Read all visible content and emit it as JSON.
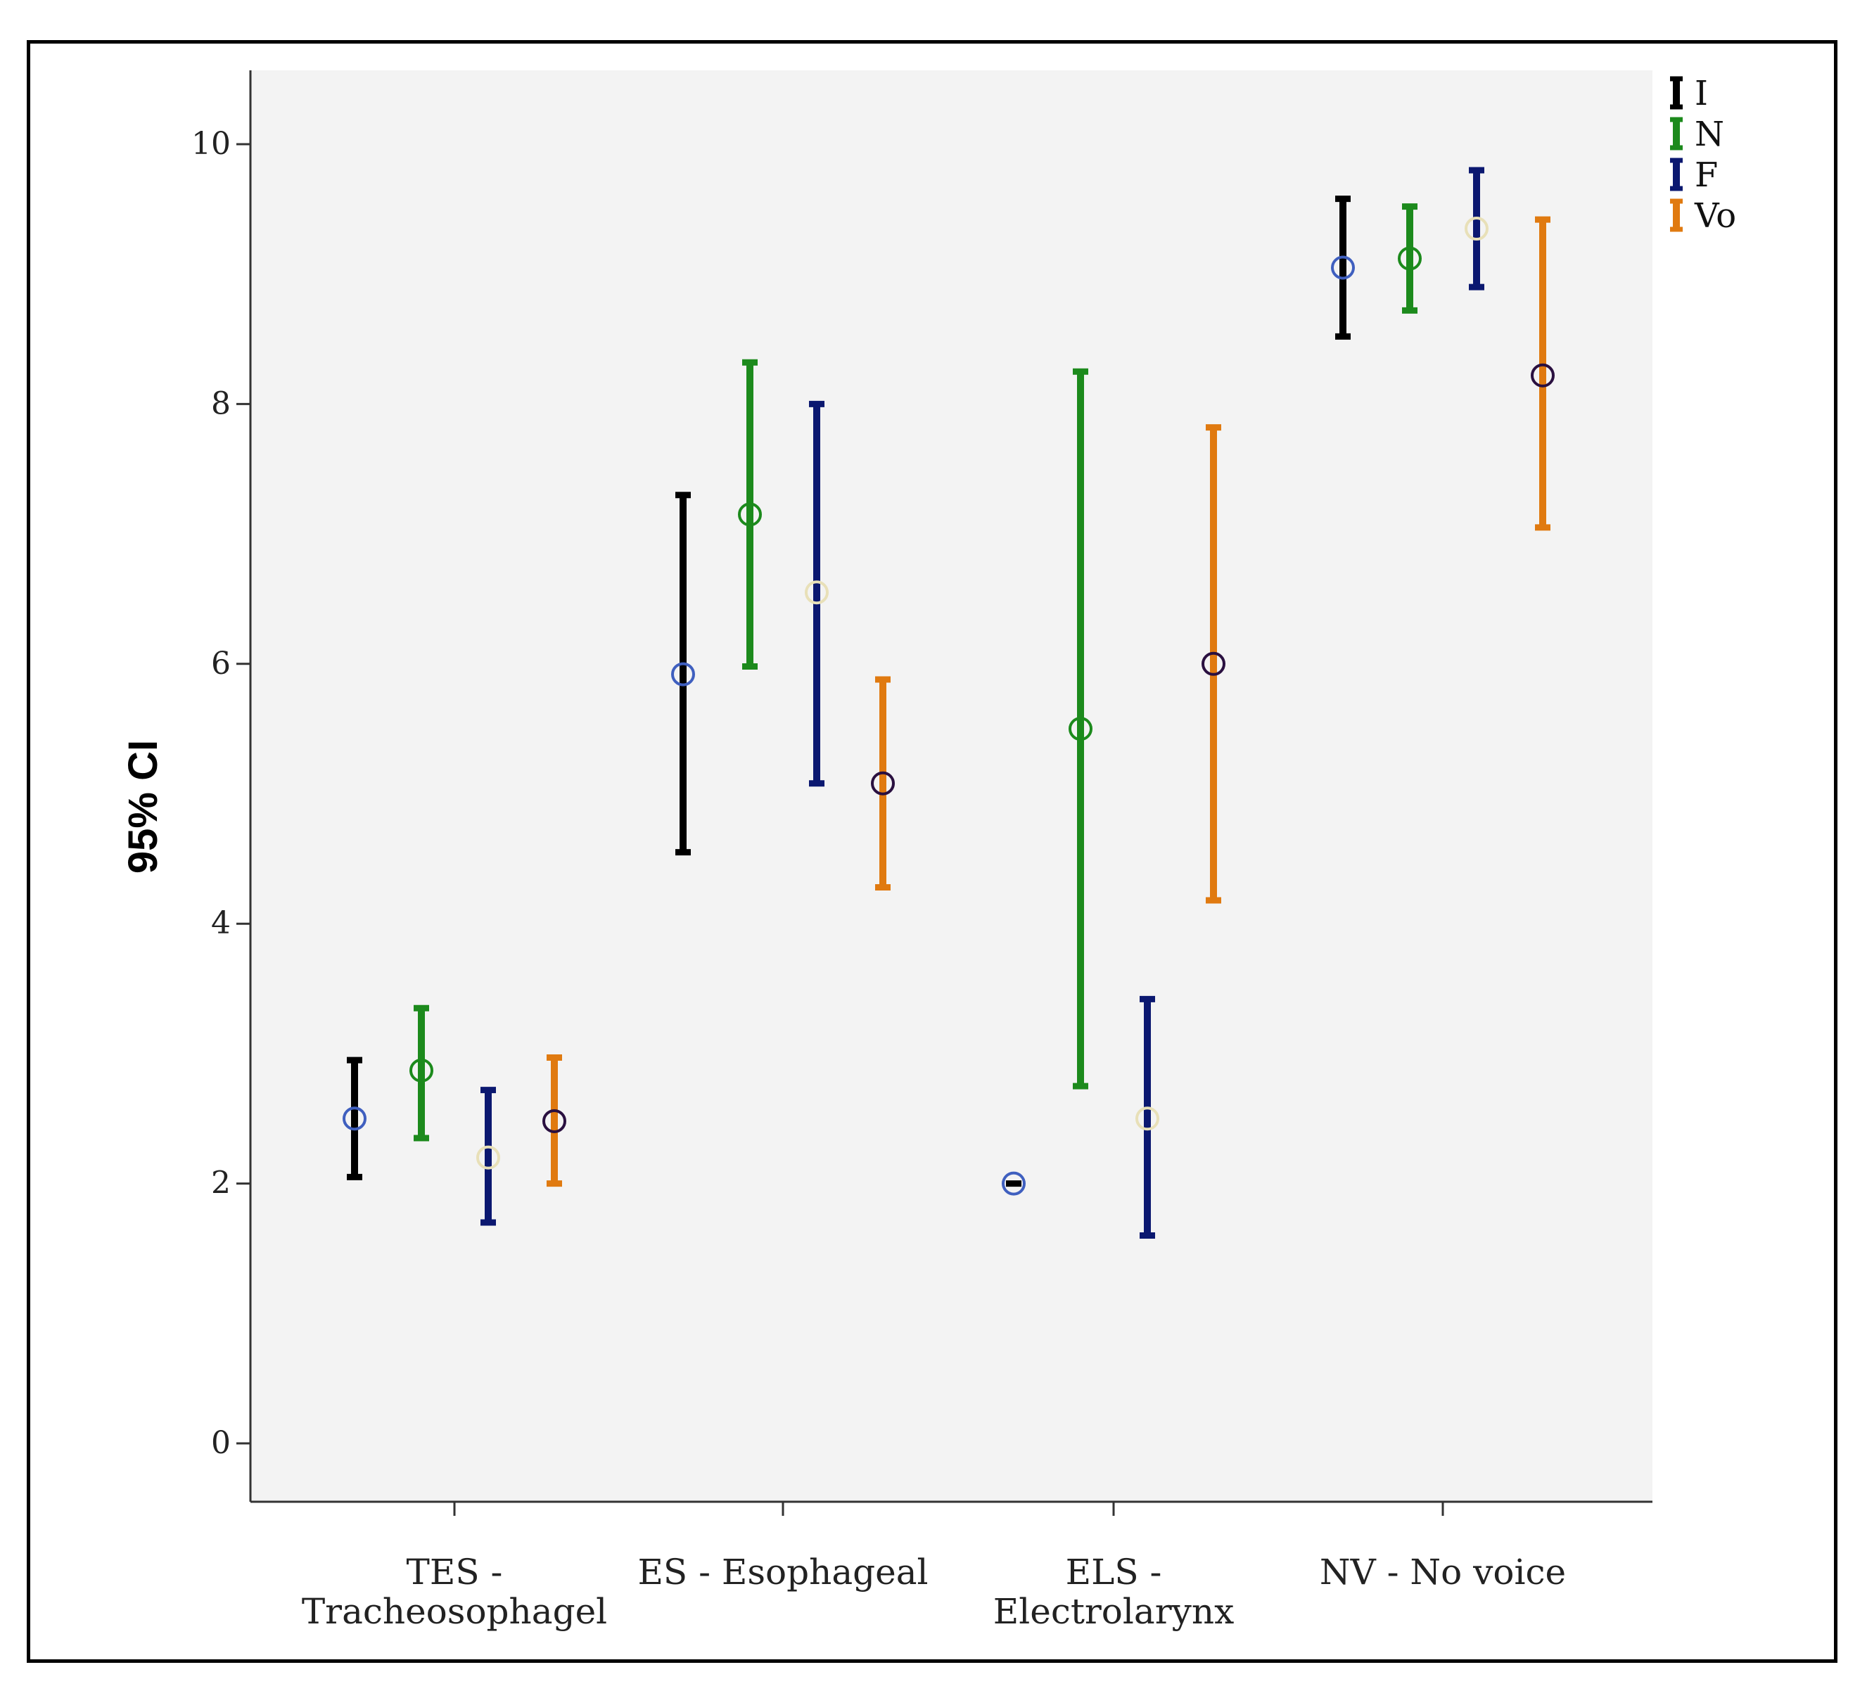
{
  "chart_data": {
    "type": "errorbar",
    "title": "",
    "xlabel": "",
    "ylabel": "95% CI",
    "ylim": [
      -0.5,
      10.55
    ],
    "yticks": [
      0,
      2,
      4,
      6,
      8,
      10
    ],
    "ytick_labels": [
      "0",
      "2",
      "4",
      "6",
      "8",
      "10"
    ],
    "categories": [
      [
        "TES -",
        "Tracheosophagel"
      ],
      [
        "ES - Esophageal"
      ],
      [
        "ELS -",
        "Electrolarynx"
      ],
      [
        "NV - No voice"
      ]
    ],
    "legend_position": "top-right",
    "series": [
      {
        "name": "I",
        "color": "#000000",
        "marker_color": "#3f5fbf",
        "points": [
          {
            "mean": 2.5,
            "low": 2.05,
            "high": 2.95
          },
          {
            "mean": 5.92,
            "low": 4.55,
            "high": 7.3
          },
          {
            "mean": 2.0,
            "low": 2.0,
            "high": 2.0
          },
          {
            "mean": 9.05,
            "low": 8.52,
            "high": 9.58
          }
        ]
      },
      {
        "name": "N",
        "color": "#1c8a1c",
        "marker_color": "#1c8a1c",
        "points": [
          {
            "mean": 2.87,
            "low": 2.35,
            "high": 3.35
          },
          {
            "mean": 7.15,
            "low": 5.98,
            "high": 8.32
          },
          {
            "mean": 5.5,
            "low": 2.75,
            "high": 8.25
          },
          {
            "mean": 9.12,
            "low": 8.72,
            "high": 9.52
          }
        ]
      },
      {
        "name": "F",
        "color": "#0b1870",
        "marker_color": "#e8e0b8",
        "points": [
          {
            "mean": 2.2,
            "low": 1.7,
            "high": 2.72
          },
          {
            "mean": 6.55,
            "low": 5.08,
            "high": 8.0
          },
          {
            "mean": 2.5,
            "low": 1.6,
            "high": 3.42
          },
          {
            "mean": 9.35,
            "low": 8.9,
            "high": 9.8
          }
        ]
      },
      {
        "name": "Vo",
        "color": "#e07a10",
        "marker_color": "#2a1040",
        "points": [
          {
            "mean": 2.48,
            "low": 2.0,
            "high": 2.97
          },
          {
            "mean": 5.08,
            "low": 4.28,
            "high": 5.88
          },
          {
            "mean": 6.0,
            "low": 4.18,
            "high": 7.82
          },
          {
            "mean": 8.22,
            "low": 7.05,
            "high": 9.42
          }
        ]
      }
    ]
  }
}
